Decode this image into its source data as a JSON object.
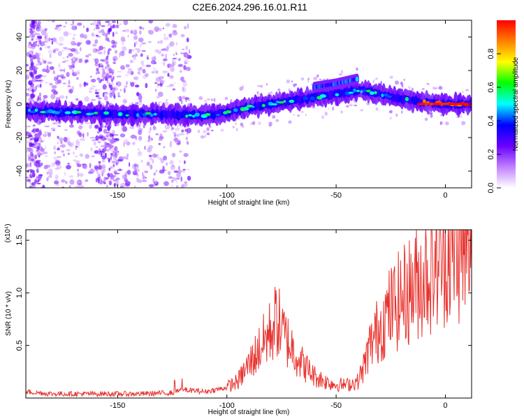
{
  "title": "C2E6.2024.296.16.01.R11",
  "chart_data": [
    {
      "type": "heatmap",
      "xlabel": "Height of straight line (km)",
      "ylabel": "Frequency (Hz)",
      "xlim": [
        -192,
        12
      ],
      "ylim": [
        -50,
        50
      ],
      "xticks": [
        -150,
        -100,
        -50,
        0
      ],
      "yticks": [
        -40,
        -20,
        0,
        20,
        40
      ],
      "grid": false,
      "colorbar": {
        "label": "Normalized spectral amplitude",
        "range": [
          0,
          1
        ],
        "ticks": [
          "0.0",
          "0.2",
          "0.4",
          "0.6",
          "0.8"
        ],
        "colors": [
          "#ffffff",
          "#c080ff",
          "#6a00ff",
          "#0000ff",
          "#00ffff",
          "#00ff00",
          "#ffff00",
          "#ff8000",
          "#ff0000"
        ]
      },
      "ridge": {
        "x": [
          -192,
          -170,
          -150,
          -130,
          -110,
          -100,
          -90,
          -80,
          -70,
          -60,
          -50,
          -40,
          -30,
          -20,
          -10,
          0,
          10
        ],
        "y": [
          -4,
          -5,
          -6,
          -6,
          -7,
          -5,
          -2,
          0,
          2,
          4,
          6,
          8,
          6,
          3,
          1,
          0,
          0
        ]
      },
      "upper_ridge": {
        "x": [
          -60,
          -50,
          -40
        ],
        "y": [
          10,
          12,
          15
        ]
      }
    },
    {
      "type": "line",
      "xlabel": "Height of straight line (km)",
      "ylabel": "SNR (10 * v/v)",
      "y_scale_note": "(x10⁴)",
      "xlim": [
        -192,
        12
      ],
      "ylim": [
        0,
        1.6
      ],
      "xticks": [
        -150,
        -100,
        -50,
        0
      ],
      "yticks": [
        0.5,
        1.0,
        1.5
      ],
      "ytick_labels": [
        "0.5",
        "1.0",
        "1.5"
      ],
      "color": "#e8322e",
      "grid": false,
      "envelope": {
        "x": [
          -192,
          -180,
          -160,
          -140,
          -125,
          -120,
          -110,
          -100,
          -95,
          -90,
          -85,
          -80,
          -77,
          -75,
          -70,
          -65,
          -60,
          -55,
          -50,
          -45,
          -40,
          -37,
          -35,
          -30,
          -25,
          -20,
          -15,
          -10,
          -5,
          0,
          5,
          10,
          12
        ],
        "y": [
          0.06,
          0.04,
          0.04,
          0.04,
          0.05,
          0.08,
          0.06,
          0.1,
          0.15,
          0.3,
          0.45,
          0.6,
          0.72,
          0.6,
          0.45,
          0.3,
          0.2,
          0.15,
          0.12,
          0.12,
          0.15,
          0.3,
          0.45,
          0.65,
          0.8,
          0.9,
          1.0,
          1.1,
          1.2,
          1.3,
          1.35,
          1.3,
          1.25
        ]
      }
    }
  ]
}
